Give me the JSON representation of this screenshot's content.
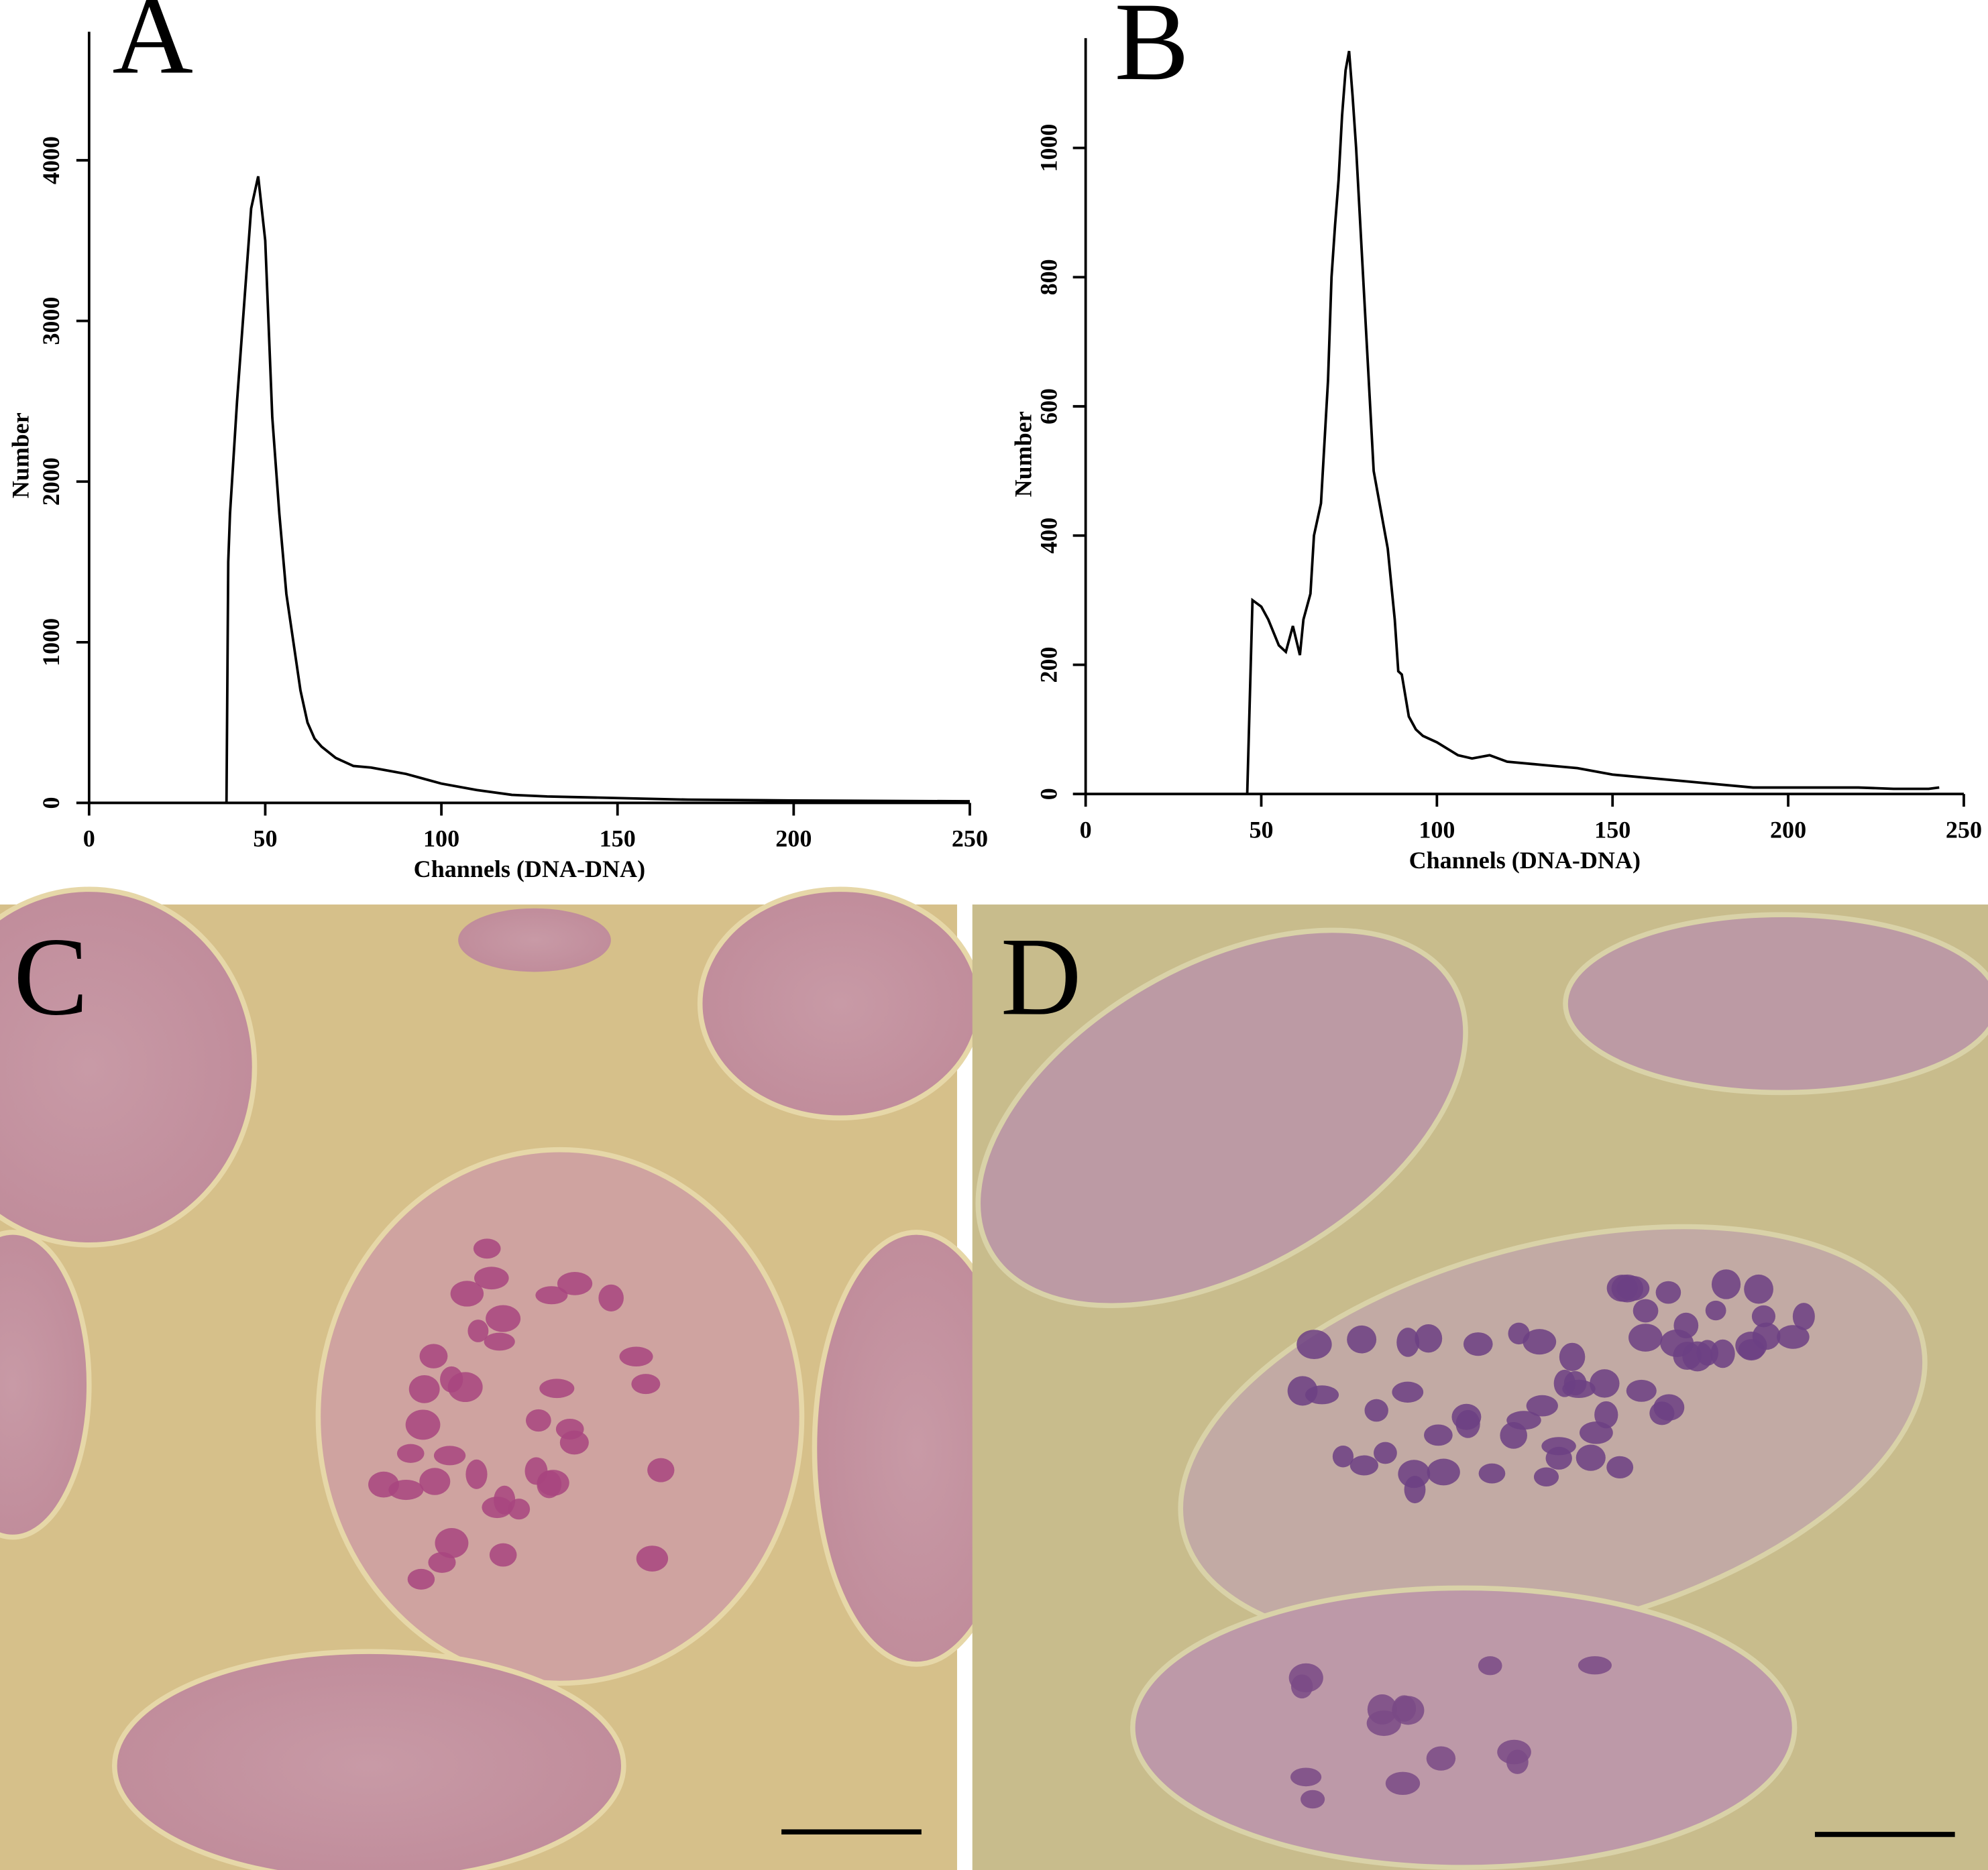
{
  "chart_data": [
    {
      "type": "line",
      "panel_label": "A",
      "x_label": "Channels (DNA-DNA)",
      "y_label": "Number",
      "color": "#000000",
      "x": [
        39,
        39.5,
        40,
        42,
        44,
        46,
        48,
        50,
        52,
        54,
        56,
        58,
        60,
        62,
        64,
        66,
        70,
        75,
        80,
        85,
        90,
        95,
        100,
        110,
        120,
        130,
        140,
        150,
        170,
        200,
        250
      ],
      "values": [
        0,
        1500,
        1800,
        2500,
        3100,
        3700,
        3900,
        3500,
        2400,
        1800,
        1300,
        1000,
        700,
        500,
        400,
        350,
        280,
        230,
        220,
        200,
        180,
        150,
        120,
        80,
        50,
        40,
        35,
        30,
        20,
        15,
        10
      ],
      "xlim": [
        0,
        250
      ],
      "xticks": [
        0,
        50,
        100,
        150,
        200,
        250
      ],
      "ylim": [
        0,
        4800
      ],
      "yticks": [
        0,
        1000,
        2000,
        3000,
        4000
      ]
    },
    {
      "type": "line",
      "panel_label": "B",
      "x_label": "Channels (DNA-DNA)",
      "y_label": "Number",
      "color": "#000000",
      "x": [
        46,
        47.5,
        50,
        52,
        55,
        57,
        59,
        61,
        62,
        64,
        65,
        67,
        69,
        70,
        71,
        72,
        73,
        74,
        75,
        76,
        77,
        78,
        80,
        82,
        84,
        86,
        88,
        89,
        90,
        92,
        94,
        96,
        100,
        103,
        106,
        110,
        115,
        120,
        130,
        140,
        150,
        160,
        170,
        180,
        190,
        200,
        220,
        230,
        240,
        243
      ],
      "values": [
        0,
        300,
        290,
        270,
        230,
        220,
        260,
        215,
        270,
        310,
        400,
        450,
        640,
        800,
        880,
        950,
        1050,
        1120,
        1150,
        1080,
        1000,
        900,
        700,
        500,
        440,
        380,
        270,
        190,
        185,
        120,
        100,
        90,
        80,
        70,
        60,
        55,
        60,
        50,
        45,
        40,
        30,
        25,
        20,
        15,
        10,
        10,
        10,
        8,
        8,
        10
      ],
      "xlim": [
        0,
        250
      ],
      "xticks": [
        0,
        50,
        100,
        150,
        200,
        250
      ],
      "ylim": [
        0,
        1170
      ],
      "yticks": [
        0,
        200,
        400,
        600,
        800,
        1000
      ]
    }
  ],
  "panels": [
    {
      "label": "C"
    },
    {
      "label": "D"
    }
  ]
}
